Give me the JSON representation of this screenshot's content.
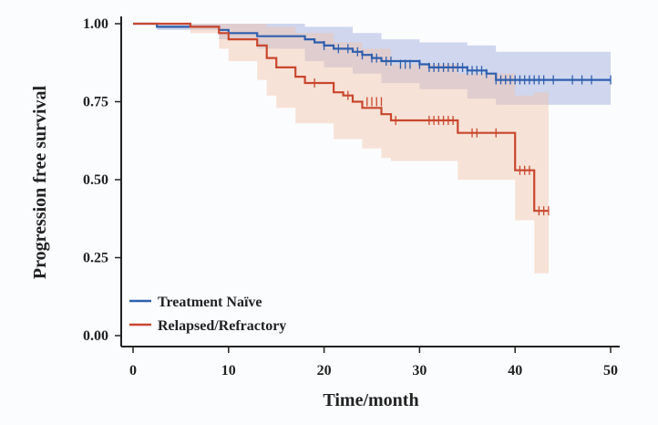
{
  "chart_data": {
    "type": "line",
    "subtype": "kaplan-meier",
    "title": "",
    "xlabel": "Time/month",
    "ylabel": "Progression  free survival",
    "xlim": [
      0,
      50
    ],
    "ylim": [
      0,
      1
    ],
    "xticks": [
      0,
      10,
      20,
      30,
      40,
      50
    ],
    "yticks": [
      "0.00",
      "0.25",
      "0.50",
      "0.75",
      "1.00"
    ],
    "legend_position": "bottom-left",
    "series": [
      {
        "name": "Treatment Naïve",
        "color": "#2f5fae",
        "band_color": "#9aa8dc",
        "steps": [
          [
            0,
            1.0
          ],
          [
            2.5,
            0.99
          ],
          [
            9,
            0.98
          ],
          [
            10,
            0.97
          ],
          [
            13,
            0.96
          ],
          [
            18,
            0.95
          ],
          [
            19,
            0.94
          ],
          [
            20,
            0.93
          ],
          [
            21,
            0.92
          ],
          [
            23,
            0.91
          ],
          [
            24,
            0.9
          ],
          [
            25,
            0.89
          ],
          [
            26,
            0.88
          ],
          [
            30,
            0.87
          ],
          [
            31,
            0.86
          ],
          [
            35,
            0.85
          ],
          [
            37,
            0.84
          ],
          [
            38,
            0.82
          ],
          [
            50,
            0.82
          ]
        ],
        "lower": [
          [
            0,
            1.0
          ],
          [
            2.5,
            0.98
          ],
          [
            9,
            0.95
          ],
          [
            13,
            0.92
          ],
          [
            18,
            0.88
          ],
          [
            20,
            0.86
          ],
          [
            23,
            0.84
          ],
          [
            26,
            0.81
          ],
          [
            30,
            0.79
          ],
          [
            35,
            0.76
          ],
          [
            38,
            0.74
          ],
          [
            50,
            0.74
          ]
        ],
        "upper": [
          [
            0,
            1.0
          ],
          [
            13,
            1.0
          ],
          [
            18,
            0.99
          ],
          [
            23,
            0.97
          ],
          [
            26,
            0.95
          ],
          [
            30,
            0.94
          ],
          [
            35,
            0.93
          ],
          [
            38,
            0.91
          ],
          [
            50,
            0.91
          ]
        ],
        "censors": [
          [
            20,
            0.93
          ],
          [
            21.5,
            0.92
          ],
          [
            22.5,
            0.92
          ],
          [
            23.5,
            0.91
          ],
          [
            24,
            0.9
          ],
          [
            25,
            0.89
          ],
          [
            25.5,
            0.89
          ],
          [
            26.5,
            0.88
          ],
          [
            27,
            0.88
          ],
          [
            28,
            0.87
          ],
          [
            28.5,
            0.87
          ],
          [
            29,
            0.87
          ],
          [
            30,
            0.87
          ],
          [
            31,
            0.86
          ],
          [
            31.5,
            0.86
          ],
          [
            32,
            0.86
          ],
          [
            32.5,
            0.86
          ],
          [
            33,
            0.86
          ],
          [
            33.5,
            0.86
          ],
          [
            34,
            0.86
          ],
          [
            34.5,
            0.86
          ],
          [
            35,
            0.85
          ],
          [
            35.5,
            0.85
          ],
          [
            36,
            0.85
          ],
          [
            36.5,
            0.85
          ],
          [
            37,
            0.84
          ],
          [
            38,
            0.82
          ],
          [
            38.5,
            0.82
          ],
          [
            39,
            0.82
          ],
          [
            39.5,
            0.82
          ],
          [
            40,
            0.82
          ],
          [
            40.5,
            0.82
          ],
          [
            41,
            0.82
          ],
          [
            41.5,
            0.82
          ],
          [
            42,
            0.82
          ],
          [
            42.5,
            0.82
          ],
          [
            43,
            0.82
          ],
          [
            44,
            0.82
          ],
          [
            46,
            0.82
          ],
          [
            47,
            0.82
          ],
          [
            48,
            0.82
          ],
          [
            50,
            0.82
          ]
        ]
      },
      {
        "name": "Relapsed/Refractory",
        "color": "#c9472e",
        "band_color": "#f1c4a8",
        "steps": [
          [
            0,
            1.0
          ],
          [
            6,
            0.99
          ],
          [
            9,
            0.97
          ],
          [
            10,
            0.95
          ],
          [
            13,
            0.93
          ],
          [
            14,
            0.89
          ],
          [
            15,
            0.86
          ],
          [
            17,
            0.83
          ],
          [
            18,
            0.81
          ],
          [
            21,
            0.78
          ],
          [
            22,
            0.77
          ],
          [
            23,
            0.75
          ],
          [
            24,
            0.73
          ],
          [
            26,
            0.71
          ],
          [
            27,
            0.69
          ],
          [
            34,
            0.65
          ],
          [
            40,
            0.53
          ],
          [
            42,
            0.4
          ],
          [
            43.5,
            0.4
          ]
        ],
        "lower": [
          [
            0,
            1.0
          ],
          [
            6,
            0.97
          ],
          [
            9,
            0.92
          ],
          [
            10,
            0.88
          ],
          [
            13,
            0.82
          ],
          [
            14,
            0.77
          ],
          [
            15,
            0.73
          ],
          [
            17,
            0.68
          ],
          [
            21,
            0.63
          ],
          [
            24,
            0.6
          ],
          [
            26,
            0.57
          ],
          [
            27,
            0.56
          ],
          [
            34,
            0.5
          ],
          [
            40,
            0.37
          ],
          [
            42,
            0.2
          ],
          [
            43.5,
            0.2
          ]
        ],
        "upper": [
          [
            0,
            1.0
          ],
          [
            10,
            1.0
          ],
          [
            14,
            0.99
          ],
          [
            17,
            0.97
          ],
          [
            21,
            0.94
          ],
          [
            24,
            0.92
          ],
          [
            27,
            0.87
          ],
          [
            34,
            0.84
          ],
          [
            40,
            0.77
          ],
          [
            42,
            0.78
          ],
          [
            43.5,
            0.78
          ]
        ],
        "censors": [
          [
            19,
            0.81
          ],
          [
            22.5,
            0.77
          ],
          [
            24.5,
            0.75
          ],
          [
            25,
            0.75
          ],
          [
            25.5,
            0.75
          ],
          [
            26,
            0.75
          ],
          [
            27.5,
            0.69
          ],
          [
            31,
            0.69
          ],
          [
            31.5,
            0.69
          ],
          [
            32,
            0.69
          ],
          [
            32.5,
            0.69
          ],
          [
            33,
            0.69
          ],
          [
            33.5,
            0.69
          ],
          [
            35.5,
            0.65
          ],
          [
            36,
            0.65
          ],
          [
            38,
            0.65
          ],
          [
            40.5,
            0.53
          ],
          [
            41,
            0.53
          ],
          [
            41.5,
            0.53
          ],
          [
            42.5,
            0.4
          ],
          [
            43,
            0.4
          ],
          [
            43.5,
            0.4
          ]
        ]
      }
    ]
  }
}
